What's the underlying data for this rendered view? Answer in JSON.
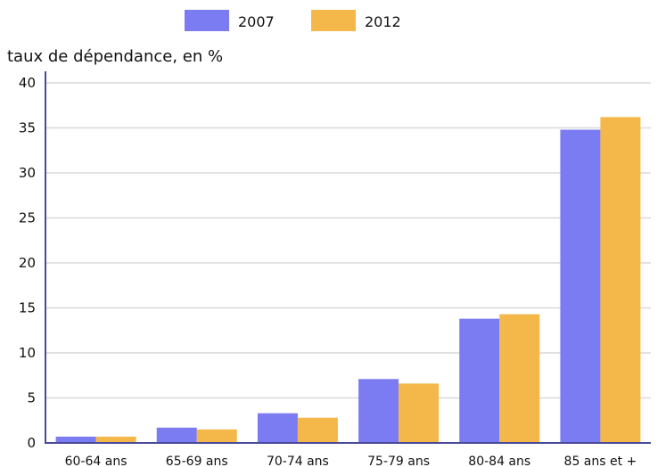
{
  "chart_data": {
    "type": "bar",
    "ylabel": "taux de dépendance, en %",
    "categories": [
      "60-64 ans",
      "65-69 ans",
      "70-74 ans",
      "75-79 ans",
      "80-84 ans",
      "85 ans et +"
    ],
    "series": [
      {
        "name": "2007",
        "color": "#7b7bf2",
        "values": [
          0.7,
          1.7,
          3.3,
          7.1,
          13.8,
          34.8
        ]
      },
      {
        "name": "2012",
        "color": "#f4b84a",
        "values": [
          0.7,
          1.5,
          2.8,
          6.6,
          14.3,
          36.2
        ]
      }
    ],
    "ylim": [
      0,
      40
    ],
    "yticks": [
      0,
      5,
      10,
      15,
      20,
      25,
      30,
      35,
      40
    ],
    "grid": true,
    "legend": "top"
  }
}
